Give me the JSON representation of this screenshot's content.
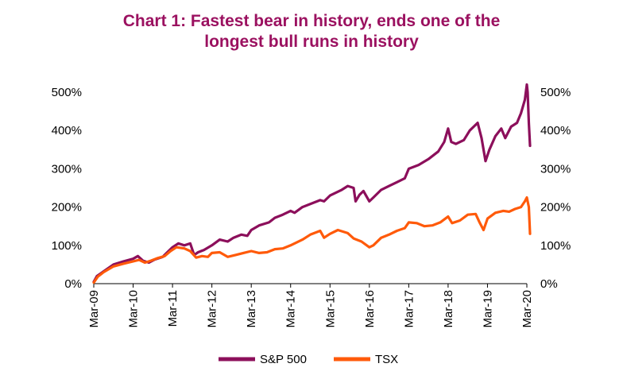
{
  "title": {
    "line1": "Chart 1: Fastest bear in history, ends one of the",
    "line2": "longest bull runs in history"
  },
  "colors": {
    "title": "#9b1160",
    "sp500": "#8c0f5b",
    "tsx": "#ff5a0a"
  },
  "chart_data": {
    "type": "line",
    "title": "Chart 1: Fastest bear in history, ends one of the longest bull runs in history",
    "xlabel": "",
    "ylabel": "",
    "x_tick_labels": [
      "Mar-09",
      "Mar-10",
      "Mar-11",
      "Mar-12",
      "Mar-13",
      "Mar-14",
      "Mar-15",
      "Mar-16",
      "Mar-17",
      "Mar-18",
      "Mar-19",
      "Mar-20"
    ],
    "y_tick_labels": [
      "0%",
      "100%",
      "200%",
      "300%",
      "400%",
      "500%"
    ],
    "ylim": [
      0,
      500
    ],
    "xlim": [
      2009.0,
      2020.0
    ],
    "y_axis_dual": true,
    "grid": false,
    "legend_position": "bottom",
    "series": [
      {
        "name": "S&P 500",
        "color": "#8c0f5b",
        "points": [
          [
            2009.0,
            5
          ],
          [
            2009.08,
            20
          ],
          [
            2009.25,
            32
          ],
          [
            2009.5,
            50
          ],
          [
            2009.75,
            58
          ],
          [
            2010.0,
            65
          ],
          [
            2010.12,
            72
          ],
          [
            2010.25,
            60
          ],
          [
            2010.4,
            55
          ],
          [
            2010.55,
            63
          ],
          [
            2010.75,
            70
          ],
          [
            2010.9,
            85
          ],
          [
            2011.0,
            95
          ],
          [
            2011.15,
            105
          ],
          [
            2011.3,
            100
          ],
          [
            2011.45,
            105
          ],
          [
            2011.55,
            75
          ],
          [
            2011.65,
            82
          ],
          [
            2011.8,
            88
          ],
          [
            2012.0,
            100
          ],
          [
            2012.2,
            115
          ],
          [
            2012.4,
            110
          ],
          [
            2012.55,
            120
          ],
          [
            2012.75,
            128
          ],
          [
            2012.9,
            125
          ],
          [
            2013.0,
            140
          ],
          [
            2013.2,
            152
          ],
          [
            2013.45,
            160
          ],
          [
            2013.6,
            172
          ],
          [
            2013.8,
            180
          ],
          [
            2014.0,
            190
          ],
          [
            2014.1,
            185
          ],
          [
            2014.3,
            200
          ],
          [
            2014.55,
            210
          ],
          [
            2014.75,
            218
          ],
          [
            2014.85,
            215
          ],
          [
            2015.0,
            230
          ],
          [
            2015.3,
            245
          ],
          [
            2015.45,
            255
          ],
          [
            2015.6,
            250
          ],
          [
            2015.65,
            215
          ],
          [
            2015.75,
            232
          ],
          [
            2015.85,
            242
          ],
          [
            2016.0,
            215
          ],
          [
            2016.1,
            225
          ],
          [
            2016.3,
            245
          ],
          [
            2016.5,
            255
          ],
          [
            2016.7,
            265
          ],
          [
            2016.9,
            275
          ],
          [
            2017.0,
            300
          ],
          [
            2017.25,
            310
          ],
          [
            2017.5,
            325
          ],
          [
            2017.75,
            345
          ],
          [
            2017.9,
            370
          ],
          [
            2018.0,
            405
          ],
          [
            2018.08,
            370
          ],
          [
            2018.2,
            365
          ],
          [
            2018.4,
            375
          ],
          [
            2018.55,
            400
          ],
          [
            2018.75,
            420
          ],
          [
            2018.85,
            380
          ],
          [
            2018.95,
            320
          ],
          [
            2019.05,
            350
          ],
          [
            2019.2,
            385
          ],
          [
            2019.35,
            405
          ],
          [
            2019.45,
            380
          ],
          [
            2019.6,
            410
          ],
          [
            2019.75,
            420
          ],
          [
            2019.85,
            445
          ],
          [
            2019.95,
            480
          ],
          [
            2020.0,
            520
          ],
          [
            2020.02,
            500
          ],
          [
            2020.05,
            420
          ],
          [
            2020.08,
            360
          ]
        ]
      },
      {
        "name": "TSX",
        "color": "#ff5a0a",
        "points": [
          [
            2009.0,
            3
          ],
          [
            2009.1,
            18
          ],
          [
            2009.25,
            30
          ],
          [
            2009.5,
            45
          ],
          [
            2009.75,
            52
          ],
          [
            2010.0,
            58
          ],
          [
            2010.15,
            62
          ],
          [
            2010.3,
            55
          ],
          [
            2010.45,
            60
          ],
          [
            2010.6,
            66
          ],
          [
            2010.8,
            72
          ],
          [
            2010.95,
            85
          ],
          [
            2011.1,
            95
          ],
          [
            2011.3,
            92
          ],
          [
            2011.45,
            85
          ],
          [
            2011.6,
            68
          ],
          [
            2011.75,
            72
          ],
          [
            2011.9,
            70
          ],
          [
            2012.0,
            80
          ],
          [
            2012.2,
            82
          ],
          [
            2012.4,
            70
          ],
          [
            2012.6,
            75
          ],
          [
            2012.8,
            80
          ],
          [
            2013.0,
            85
          ],
          [
            2013.2,
            80
          ],
          [
            2013.4,
            82
          ],
          [
            2013.6,
            90
          ],
          [
            2013.8,
            92
          ],
          [
            2014.0,
            100
          ],
          [
            2014.3,
            115
          ],
          [
            2014.5,
            128
          ],
          [
            2014.75,
            138
          ],
          [
            2014.85,
            120
          ],
          [
            2015.0,
            130
          ],
          [
            2015.2,
            140
          ],
          [
            2015.45,
            132
          ],
          [
            2015.6,
            118
          ],
          [
            2015.8,
            110
          ],
          [
            2016.0,
            95
          ],
          [
            2016.1,
            100
          ],
          [
            2016.3,
            120
          ],
          [
            2016.5,
            128
          ],
          [
            2016.7,
            138
          ],
          [
            2016.9,
            145
          ],
          [
            2017.0,
            160
          ],
          [
            2017.2,
            158
          ],
          [
            2017.4,
            150
          ],
          [
            2017.6,
            152
          ],
          [
            2017.8,
            160
          ],
          [
            2018.0,
            175
          ],
          [
            2018.1,
            158
          ],
          [
            2018.3,
            165
          ],
          [
            2018.5,
            180
          ],
          [
            2018.7,
            182
          ],
          [
            2018.8,
            160
          ],
          [
            2018.9,
            140
          ],
          [
            2019.0,
            170
          ],
          [
            2019.2,
            185
          ],
          [
            2019.4,
            190
          ],
          [
            2019.55,
            188
          ],
          [
            2019.7,
            195
          ],
          [
            2019.85,
            200
          ],
          [
            2019.95,
            215
          ],
          [
            2020.0,
            225
          ],
          [
            2020.05,
            200
          ],
          [
            2020.08,
            130
          ]
        ]
      }
    ]
  }
}
